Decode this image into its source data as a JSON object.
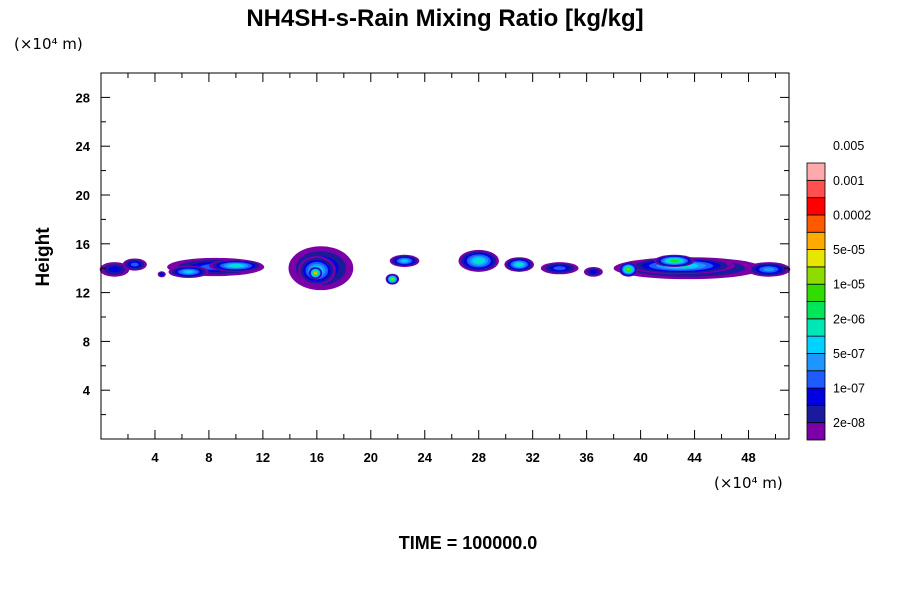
{
  "chart_data": {
    "type": "heatmap",
    "title": "NH4SH-s-Rain Mixing Ratio [kg/kg]",
    "ylabel": "Height",
    "x_unit_label": "(×10⁴ m)",
    "y_unit_label": "(×10⁴ m)",
    "footer": "TIME = 100000.0",
    "xlim": [
      0,
      51
    ],
    "ylim": [
      0,
      30
    ],
    "x_ticks": [
      4,
      8,
      12,
      16,
      20,
      24,
      28,
      32,
      36,
      40,
      44,
      48
    ],
    "x_tick_labels": [
      "4",
      "8",
      "12",
      "16",
      "20",
      "24",
      "28",
      "32",
      "36",
      "40",
      "44",
      "48"
    ],
    "y_ticks": [
      4,
      8,
      12,
      16,
      20,
      24,
      28
    ],
    "y_tick_labels": [
      "4",
      "8",
      "12",
      "16",
      "20",
      "24",
      "28"
    ],
    "colorbar": {
      "colors": [
        "#7b00a8",
        "#1a1a9c",
        "#0000e0",
        "#1e5cff",
        "#1e96ff",
        "#00d2ff",
        "#00e6b4",
        "#00e65a",
        "#32dc00",
        "#8cdc00",
        "#e6e600",
        "#ffaa00",
        "#ff5a00",
        "#ff0000",
        "#ff5050",
        "#ffaaaa"
      ],
      "labels": [
        "2e-08",
        "1e-07",
        "5e-07",
        "2e-06",
        "1e-05",
        "5e-05",
        "0.0002",
        "0.001",
        "0.005"
      ],
      "label_band_index": [
        1,
        3,
        5,
        7,
        9,
        11,
        13,
        15,
        17
      ]
    },
    "cells": [
      {
        "x": 1.0,
        "y": 13.9,
        "rx": 1.1,
        "ry": 0.6,
        "level": 2
      },
      {
        "x": 2.5,
        "y": 14.3,
        "rx": 0.9,
        "ry": 0.5,
        "level": 3
      },
      {
        "x": 4.5,
        "y": 13.5,
        "rx": 0.3,
        "ry": 0.25,
        "level": 2
      },
      {
        "x": 8.5,
        "y": 14.1,
        "rx": 3.6,
        "ry": 0.75,
        "level": 3
      },
      {
        "x": 6.5,
        "y": 13.7,
        "rx": 1.5,
        "ry": 0.5,
        "level": 5
      },
      {
        "x": 10.0,
        "y": 14.2,
        "rx": 2.0,
        "ry": 0.5,
        "level": 6
      },
      {
        "x": 16.3,
        "y": 14.0,
        "rx": 2.4,
        "ry": 1.8,
        "level": 3
      },
      {
        "x": 16.0,
        "y": 13.8,
        "rx": 1.4,
        "ry": 1.2,
        "level": 6
      },
      {
        "x": 15.9,
        "y": 13.6,
        "rx": 0.5,
        "ry": 0.5,
        "level": 11
      },
      {
        "x": 22.5,
        "y": 14.6,
        "rx": 1.1,
        "ry": 0.5,
        "level": 5
      },
      {
        "x": 21.6,
        "y": 13.1,
        "rx": 0.5,
        "ry": 0.45,
        "level": 9
      },
      {
        "x": 28.0,
        "y": 14.6,
        "rx": 1.5,
        "ry": 0.9,
        "level": 6
      },
      {
        "x": 31.0,
        "y": 14.3,
        "rx": 1.1,
        "ry": 0.6,
        "level": 6
      },
      {
        "x": 34.0,
        "y": 14.0,
        "rx": 1.4,
        "ry": 0.5,
        "level": 3
      },
      {
        "x": 36.5,
        "y": 13.7,
        "rx": 0.7,
        "ry": 0.4,
        "level": 2
      },
      {
        "x": 43.5,
        "y": 14.0,
        "rx": 5.5,
        "ry": 0.9,
        "level": 3
      },
      {
        "x": 43.0,
        "y": 14.2,
        "rx": 4.0,
        "ry": 0.7,
        "level": 6
      },
      {
        "x": 39.1,
        "y": 13.9,
        "rx": 0.7,
        "ry": 0.6,
        "level": 9
      },
      {
        "x": 42.5,
        "y": 14.6,
        "rx": 1.5,
        "ry": 0.5,
        "level": 8
      },
      {
        "x": 49.5,
        "y": 13.9,
        "rx": 1.6,
        "ry": 0.6,
        "level": 4
      }
    ]
  }
}
